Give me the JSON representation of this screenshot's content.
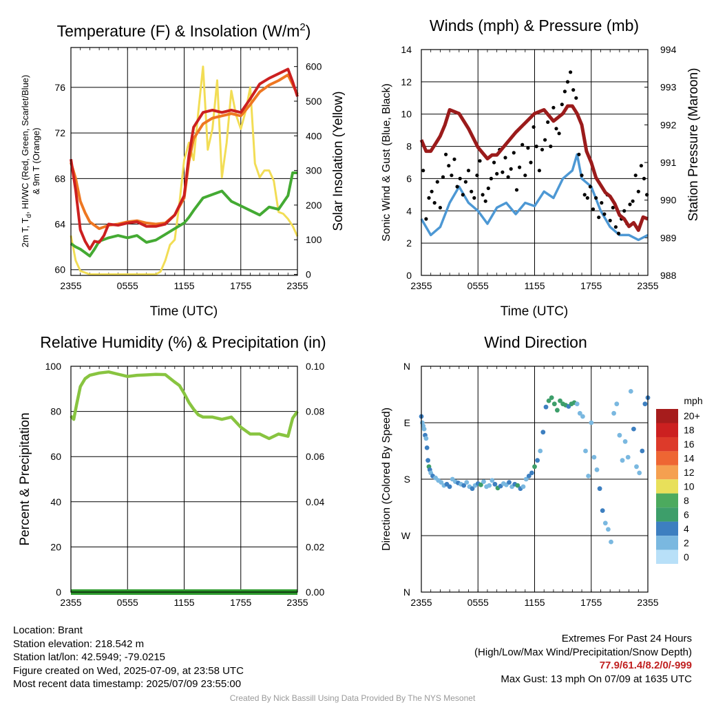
{
  "colors": {
    "temp_red": "#cc2020",
    "dewpoint_green": "#44aa33",
    "temp9m_orange": "#ee7722",
    "insolation_yellow": "#f2dd55",
    "wind_blue": "#4d98d4",
    "gust_black": "#000000",
    "pressure_maroon": "#9b1b1b",
    "humidity_green": "#88c440",
    "precip_green": "#2e9a2e"
  },
  "chart_data": [
    {
      "id": "temperature",
      "type": "line",
      "title": "Temperature (F) & Insolation (W/m²)",
      "title_main": "Temperature (F) & Insolation (W/m",
      "title_sup": "2",
      "title_end": ")",
      "xlabel": "Time (UTC)",
      "ylabel_left": [
        "2m T, T",
        "d",
        ", HI/WC (Red, Green, Scarlet/Blue)",
        "& 9m T (Orange)"
      ],
      "ylabel_right": "Solar Insolation (Yellow)",
      "x_ticks": [
        "2355",
        "0555",
        "1155",
        "1755",
        "2355"
      ],
      "ylim": [
        59.5,
        79.5
      ],
      "y_ticks": [
        60,
        64,
        68,
        72,
        76
      ],
      "y2lim": [
        -3,
        655
      ],
      "y2_ticks": [
        0,
        100,
        200,
        300,
        400,
        500,
        600
      ],
      "series": [
        {
          "name": "2m T",
          "color": "#cc2020",
          "x": [
            0,
            0.5,
            1,
            1.5,
            2,
            2.5,
            3,
            3.5,
            4,
            5,
            6,
            7,
            8,
            9,
            10,
            11,
            12,
            12.5,
            13,
            14,
            15,
            16,
            17,
            18,
            19,
            20,
            21,
            22,
            23,
            23.5,
            24
          ],
          "y": [
            69.7,
            67,
            63.5,
            62.5,
            61.8,
            62.5,
            62.4,
            63,
            64,
            63.9,
            64.1,
            64.2,
            63.8,
            63.8,
            64,
            64.8,
            66.5,
            70,
            72.5,
            73.8,
            74,
            73.8,
            74,
            73.8,
            75,
            76.3,
            76.8,
            77.2,
            77.6,
            76.5,
            75.2
          ]
        },
        {
          "name": "9m T",
          "color": "#ee7722",
          "x": [
            0,
            0.5,
            1,
            1.5,
            2,
            3,
            4,
            5,
            6,
            7,
            8,
            9,
            10,
            11,
            12,
            12.5,
            13,
            14,
            15,
            16,
            17,
            18,
            19,
            20,
            21,
            22,
            23,
            24
          ],
          "y": [
            69.4,
            68,
            66,
            65,
            64.2,
            63.6,
            63.9,
            64,
            64.2,
            64.3,
            64.1,
            64,
            64.1,
            64.8,
            66.3,
            69.5,
            71.5,
            72.8,
            73.3,
            73.5,
            73.7,
            73.5,
            74.5,
            75.6,
            76.2,
            76.6,
            77.1,
            75.4
          ]
        },
        {
          "name": "Td",
          "color": "#44aa33",
          "x": [
            0,
            0.5,
            1,
            1.5,
            2,
            2.5,
            3,
            4,
            5,
            6,
            7,
            8,
            9,
            10,
            11,
            12,
            12.5,
            13,
            14,
            15,
            16,
            17,
            18,
            19,
            20,
            21,
            22,
            23,
            23.5,
            24
          ],
          "y": [
            62.3,
            62,
            61.8,
            61.5,
            61.2,
            61.8,
            62.5,
            62.8,
            63,
            62.8,
            63,
            62.4,
            62.6,
            63.1,
            63.6,
            64.1,
            64.6,
            65.2,
            66.3,
            66.6,
            66.9,
            66,
            65.6,
            65.2,
            64.8,
            65.5,
            65.3,
            66.5,
            68.5,
            68.5
          ]
        }
      ],
      "insolation": {
        "x": [
          0,
          0.5,
          1,
          1.5,
          2,
          3,
          4,
          5,
          6,
          7,
          8,
          9,
          9.5,
          10,
          10.5,
          11,
          11.5,
          12,
          12.5,
          13,
          13.5,
          14,
          14.5,
          15,
          15.5,
          16,
          16.5,
          17,
          17.5,
          18,
          18.5,
          19,
          19.5,
          20,
          20.5,
          21,
          21.5,
          22,
          22.5,
          23,
          23.5,
          24
        ],
        "y": [
          112,
          40,
          10,
          5,
          0,
          0,
          0,
          0,
          0,
          0,
          0,
          0,
          8,
          40,
          85,
          100,
          205,
          330,
          380,
          330,
          470,
          600,
          360,
          420,
          560,
          280,
          380,
          530,
          460,
          420,
          470,
          540,
          320,
          280,
          300,
          300,
          270,
          180,
          175,
          160,
          140,
          110
        ]
      }
    },
    {
      "id": "winds",
      "type": "line",
      "title": "Winds (mph) & Pressure (mb)",
      "xlabel": "Time (UTC)",
      "ylabel_left": "Sonic Wind & Gust (Blue, Black)",
      "ylabel_right": "Station Pressure (Maroon)",
      "x_ticks": [
        "2355",
        "0555",
        "1155",
        "1755",
        "2355"
      ],
      "ylim": [
        0,
        14
      ],
      "y_ticks": [
        0,
        2,
        4,
        6,
        8,
        10,
        12,
        14
      ],
      "y2lim": [
        988,
        994
      ],
      "y2_ticks": [
        988,
        989,
        990,
        991,
        992,
        993,
        994
      ],
      "wind": {
        "x": [
          0,
          1,
          2,
          3,
          4,
          5,
          6,
          7,
          8,
          9,
          10,
          11,
          12,
          13,
          14,
          15,
          16,
          16.5,
          17,
          18,
          19,
          20,
          21,
          22,
          23,
          24
        ],
        "y": [
          3.5,
          2.5,
          3,
          4.5,
          5.5,
          4.5,
          4,
          3.2,
          4.2,
          4.5,
          3.8,
          4.5,
          4.3,
          5.2,
          4.8,
          6,
          6.5,
          7.5,
          6,
          5.5,
          4,
          3,
          2.5,
          2.5,
          2.2,
          2.5
        ]
      },
      "gust": {
        "x": [
          0.2,
          0.5,
          0.8,
          1.1,
          1.4,
          1.7,
          2,
          2.3,
          2.6,
          2.9,
          3.2,
          3.5,
          3.8,
          4.1,
          4.4,
          4.7,
          5,
          5.3,
          5.6,
          5.9,
          6.2,
          6.5,
          6.8,
          7.1,
          7.4,
          7.7,
          8,
          8.3,
          8.6,
          8.9,
          9.2,
          9.5,
          9.8,
          10.1,
          10.4,
          10.7,
          11,
          11.3,
          11.6,
          11.9,
          12.2,
          12.5,
          12.8,
          13.1,
          13.4,
          13.7,
          14,
          14.3,
          14.6,
          14.9,
          15.2,
          15.5,
          15.8,
          16.1,
          16.4,
          16.7,
          17,
          17.3,
          17.6,
          17.9,
          18.2,
          18.5,
          18.8,
          19.1,
          19.4,
          19.7,
          20,
          20.3,
          20.6,
          20.9,
          21.2,
          21.5,
          21.8,
          22.1,
          22.4,
          22.7,
          23,
          23.3,
          23.6,
          23.9
        ],
        "y": [
          6.5,
          3.5,
          4.8,
          5.2,
          4.5,
          5.8,
          4.2,
          6.1,
          7.5,
          6.8,
          6.2,
          7.2,
          5.5,
          6.0,
          5.0,
          5.8,
          6.5,
          5.2,
          4.8,
          6.2,
          7.1,
          5.0,
          4.6,
          5.4,
          6.0,
          7.0,
          6.3,
          7.8,
          6.4,
          7.3,
          6.1,
          6.6,
          7.6,
          5.3,
          6.7,
          8.1,
          6.2,
          7.9,
          7.0,
          9.2,
          8.0,
          6.5,
          7.8,
          8.4,
          9.5,
          8.0,
          10.4,
          9.1,
          8.8,
          10.6,
          11.4,
          12.0,
          12.6,
          11.5,
          11.0,
          7.5,
          6.2,
          5.0,
          4.8,
          5.5,
          4.1,
          4.8,
          3.6,
          4.5,
          3.8,
          5.0,
          3.4,
          4.2,
          3.0,
          2.6,
          3.5,
          4.0,
          3.2,
          4.4,
          4.6,
          6.2,
          5.2,
          6.8,
          6.0,
          5.0
        ]
      },
      "pressure": {
        "x": [
          0,
          0.5,
          1,
          1.5,
          2,
          2.5,
          3,
          3.5,
          4,
          4.5,
          5,
          6,
          7,
          7.5,
          8,
          9,
          10,
          11,
          12,
          13,
          14,
          14.5,
          15,
          15.5,
          16,
          16.5,
          17,
          17.5,
          18,
          18.5,
          19,
          19.5,
          20,
          20.5,
          21,
          21.5,
          22,
          22.5,
          23,
          23.5,
          24
        ],
        "y": [
          991.6,
          991.3,
          991.3,
          991.5,
          991.7,
          992.0,
          992.4,
          992.35,
          992.3,
          992.1,
          991.9,
          991.4,
          991.1,
          991.2,
          991.2,
          991.5,
          991.8,
          992.05,
          992.3,
          992.4,
          992.1,
          992.2,
          992.3,
          992.5,
          992.5,
          992.3,
          992.0,
          991.3,
          991.0,
          990.6,
          990.4,
          990.2,
          990.1,
          989.9,
          989.6,
          989.5,
          989.3,
          989.4,
          989.2,
          989.55,
          989.5
        ]
      }
    },
    {
      "id": "humidity",
      "type": "line",
      "title": "Relative Humidity (%) & Precipitation (in)",
      "xlabel": "",
      "ylabel_left": "Percent & Precipitation",
      "x_ticks": [
        "2355",
        "0555",
        "1155",
        "1755",
        "2355"
      ],
      "ylim": [
        0,
        100
      ],
      "y_ticks": [
        0,
        20,
        40,
        60,
        80,
        100
      ],
      "y2lim": [
        0,
        0.1
      ],
      "y2_ticks": [
        "0.00",
        "0.02",
        "0.04",
        "0.06",
        "0.08",
        "0.10"
      ],
      "rh": {
        "x": [
          0,
          0.3,
          0.6,
          1,
          1.5,
          2,
          3,
          4,
          5,
          6,
          7,
          8,
          9,
          10,
          11,
          11.5,
          12,
          12.5,
          13,
          13.5,
          14,
          15,
          16,
          17,
          18,
          19,
          20,
          21,
          22,
          22.5,
          23,
          23.5,
          24
        ],
        "y": [
          78,
          76.5,
          83,
          91,
          94.5,
          96,
          97,
          97.5,
          96.5,
          95.5,
          96,
          96.2,
          96.4,
          96.3,
          93,
          91.5,
          88,
          84,
          81,
          78.5,
          77.5,
          77.5,
          76.5,
          77.5,
          73,
          70,
          70,
          68,
          70,
          69.5,
          69,
          77,
          80
        ]
      },
      "precip": {
        "x": [
          0,
          24
        ],
        "y": [
          0,
          0
        ]
      }
    },
    {
      "id": "direction",
      "type": "scatter",
      "title": "Wind Direction",
      "ylabel_left": "Direction (Colored By Speed)",
      "x_ticks": [
        "2355",
        "0555",
        "1155",
        "1755",
        "2355"
      ],
      "y_ticks": [
        "N",
        "W",
        "S",
        "E",
        "N"
      ],
      "legend_title": "mph",
      "legend_labels": [
        "20+",
        "18",
        "16",
        "14",
        "12",
        "10",
        "8",
        "6",
        "4",
        "2",
        "0"
      ],
      "legend_colors": [
        "#a61c1c",
        "#cc2020",
        "#dd3a2a",
        "#ee6633",
        "#f5a050",
        "#e8e05a",
        "#4caa5e",
        "#3d9e6a",
        "#3d7fc0",
        "#7ab8e0",
        "#b8e0f8"
      ],
      "points": {
        "x": [
          0,
          0.1,
          0.2,
          0.3,
          0.4,
          0.5,
          0.6,
          0.7,
          0.8,
          0.9,
          1.0,
          1.2,
          1.5,
          1.8,
          2.1,
          2.4,
          2.7,
          3.0,
          3.3,
          3.6,
          3.9,
          4.2,
          4.5,
          4.8,
          5.1,
          5.4,
          5.7,
          6.0,
          6.3,
          6.6,
          6.9,
          7.2,
          7.5,
          7.8,
          8.1,
          8.4,
          8.7,
          9.0,
          9.3,
          9.6,
          9.9,
          10.2,
          10.5,
          10.8,
          11.1,
          11.4,
          11.7,
          12.0,
          12.3,
          12.6,
          12.9,
          13.2,
          13.5,
          13.8,
          14.1,
          14.4,
          14.7,
          15.0,
          15.3,
          15.6,
          15.9,
          16.2,
          16.5,
          16.8,
          17.1,
          17.4,
          17.7,
          18.0,
          18.3,
          18.6,
          18.9,
          19.2,
          19.5,
          19.8,
          20.1,
          20.4,
          20.7,
          21.0,
          21.3,
          21.6,
          21.9,
          22.2,
          22.5,
          22.8,
          23.1,
          23.4,
          23.7,
          24.0
        ],
        "y": [
          280,
          270,
          265,
          260,
          250,
          245,
          230,
          210,
          200,
          195,
          190,
          185,
          182,
          178,
          175,
          170,
          172,
          168,
          180,
          176,
          174,
          172,
          170,
          175,
          168,
          165,
          170,
          173,
          171,
          176,
          168,
          170,
          178,
          172,
          166,
          169,
          173,
          171,
          175,
          168,
          172,
          170,
          165,
          168,
          180,
          185,
          190,
          200,
          210,
          225,
          255,
          295,
          305,
          310,
          300,
          290,
          305,
          300,
          298,
          296,
          300,
          302,
          300,
          285,
          280,
          225,
          185,
          270,
          215,
          195,
          165,
          130,
          110,
          100,
          80,
          285,
          300,
          250,
          210,
          240,
          215,
          320,
          260,
          200,
          190,
          225,
          300,
          310
        ],
        "speed": [
          4,
          3,
          2,
          2,
          4,
          3,
          4,
          5,
          6,
          4,
          3,
          4,
          3,
          3,
          2,
          3,
          4,
          4,
          3,
          3,
          4,
          3,
          5,
          3,
          3,
          4,
          3,
          4,
          6,
          3,
          2,
          3,
          2,
          5,
          6,
          4,
          3,
          3,
          4,
          3,
          5,
          6,
          5,
          3,
          3,
          4,
          5,
          6,
          5,
          3,
          4,
          5,
          6,
          7,
          6,
          7,
          6,
          6,
          7,
          5,
          6,
          6,
          3,
          2,
          2,
          2,
          3,
          2,
          3,
          3,
          4,
          4,
          3,
          2,
          2,
          3,
          3,
          2,
          2,
          3,
          3,
          3,
          4,
          3,
          3,
          4,
          4,
          4
        ]
      }
    }
  ],
  "info_left": {
    "location": "Location: Brant",
    "elevation": "Station elevation: 218.542 m",
    "latlon": "Station lat/lon: 42.5949; -79.0215",
    "created": "Figure created on Wed, 2025-07-09, at 23:58 UTC",
    "recent": "Most recent data timestamp: 2025/07/09 23:55:00"
  },
  "info_right": {
    "heading": "Extremes For Past 24 Hours",
    "subheading": "(High/Low/Max Wind/Precipitation/Snow Depth)",
    "values": "77.9/61.4/8.2/0/-999",
    "gust": "Max Gust: 13 mph On 07/09 at 1635 UTC"
  },
  "credit": "Created By Nick Bassill Using Data Provided By The NYS Mesonet"
}
